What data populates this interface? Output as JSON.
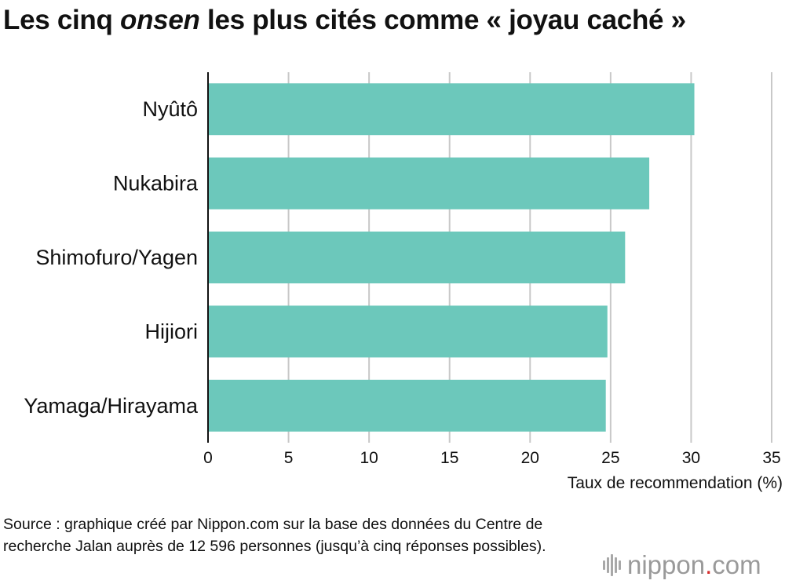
{
  "title": {
    "before": "Les cinq ",
    "emphasis": "onsen",
    "after": " les plus cités comme « joyau caché »"
  },
  "chart_data": {
    "type": "bar",
    "orientation": "horizontal",
    "categories": [
      "Nyûtô",
      "Nukabira",
      "Shimofuro/Yagen",
      "Hijiori",
      "Yamaga/Hirayama"
    ],
    "values": [
      30.2,
      27.4,
      25.9,
      24.8,
      24.7
    ],
    "xlabel": "Taux de recommendation (%)",
    "ylabel": "",
    "xlim": [
      0,
      35
    ],
    "xticks": [
      "0",
      "5",
      "10",
      "15",
      "20",
      "25",
      "30",
      "35"
    ],
    "grid": true,
    "bar_color": "#6cc8bb",
    "gridline_color": "#c8c8c8"
  },
  "source_text": "Source : graphique créé par Nippon.com sur la base des données du Centre de recherche Jalan auprès de 12 596 personnes (jusqu’à cinq réponses possibles).",
  "logo": {
    "name": "nippon",
    "dot": ".",
    "suffix": "com",
    "icon": "soundwave-icon",
    "text_color": "#9a9a9a",
    "accent": "#d52b2b"
  }
}
